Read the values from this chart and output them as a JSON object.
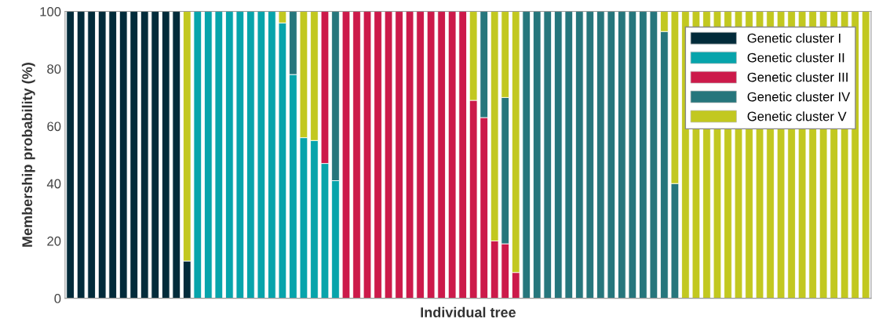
{
  "chart_data": {
    "type": "bar",
    "stacked": true,
    "xlabel": "Individual tree",
    "ylabel": "Membership probability (%)",
    "categories": [
      null,
      null,
      null,
      null,
      null,
      null,
      null,
      null,
      null,
      null,
      null,
      null,
      null,
      null,
      null,
      null,
      null,
      null,
      null,
      null,
      null,
      null,
      null,
      null,
      null,
      null,
      null,
      null,
      null,
      null,
      null,
      null,
      null,
      null,
      null,
      null,
      null,
      null,
      null,
      null,
      null,
      null,
      null,
      null,
      null,
      null,
      null,
      null,
      null,
      null,
      null,
      null,
      null,
      null,
      null,
      null,
      null,
      null,
      null,
      null,
      null,
      null,
      null,
      null,
      null,
      null,
      null,
      null,
      null,
      null,
      null,
      null,
      null,
      null,
      null,
      null
    ],
    "series": [
      {
        "name": "Genetic cluster I",
        "color": "#022b3a",
        "values": [
          100,
          100,
          100,
          100,
          100,
          100,
          100,
          100,
          100,
          100,
          100,
          13,
          null,
          null,
          null,
          null,
          null,
          null,
          null,
          null,
          null,
          null,
          null,
          null,
          null,
          null,
          null,
          null,
          null,
          null,
          null,
          null,
          null,
          null,
          null,
          null,
          null,
          null,
          null,
          null,
          null,
          null,
          null,
          null,
          null,
          null,
          null,
          null,
          null,
          null,
          null,
          null,
          null,
          null,
          null,
          null,
          null,
          null,
          null,
          null,
          null,
          null,
          null,
          null,
          null,
          null,
          null,
          null,
          null,
          null,
          null,
          null,
          null,
          null,
          null,
          null
        ]
      },
      {
        "name": "Genetic cluster II",
        "color": "#07a4ab",
        "values": [
          null,
          null,
          null,
          null,
          null,
          null,
          null,
          null,
          null,
          null,
          null,
          null,
          100,
          100,
          100,
          100,
          100,
          100,
          100,
          100,
          96,
          78,
          56,
          55,
          47,
          41,
          null,
          null,
          null,
          null,
          null,
          null,
          null,
          null,
          null,
          null,
          null,
          null,
          null,
          null,
          null,
          null,
          null,
          null,
          null,
          null,
          null,
          null,
          null,
          null,
          null,
          null,
          null,
          null,
          null,
          null,
          null,
          null,
          null,
          null,
          null,
          null,
          null,
          null,
          null,
          null,
          null,
          null,
          null,
          null,
          null,
          null,
          null,
          null,
          null,
          null
        ]
      },
      {
        "name": "Genetic cluster III",
        "color": "#cc1a4a",
        "values": [
          null,
          null,
          null,
          null,
          null,
          null,
          null,
          null,
          null,
          null,
          null,
          null,
          null,
          null,
          null,
          null,
          null,
          null,
          null,
          null,
          null,
          null,
          null,
          null,
          53,
          null,
          100,
          100,
          100,
          100,
          100,
          100,
          100,
          100,
          100,
          100,
          100,
          100,
          69,
          63,
          20,
          19,
          9,
          null,
          null,
          null,
          null,
          null,
          null,
          null,
          null,
          null,
          null,
          null,
          null,
          null,
          null,
          null,
          null,
          null,
          null,
          null,
          null,
          null,
          null,
          null,
          null,
          null,
          null,
          null,
          null,
          null,
          null,
          null,
          null,
          null
        ]
      },
      {
        "name": "Genetic cluster IV",
        "color": "#26767c",
        "values": [
          null,
          null,
          null,
          null,
          null,
          null,
          null,
          null,
          null,
          null,
          null,
          null,
          null,
          null,
          null,
          null,
          null,
          null,
          null,
          null,
          null,
          22,
          null,
          null,
          null,
          59,
          null,
          null,
          null,
          null,
          null,
          null,
          null,
          null,
          null,
          null,
          null,
          null,
          null,
          37,
          null,
          51,
          null,
          100,
          100,
          100,
          100,
          100,
          100,
          100,
          100,
          100,
          100,
          100,
          100,
          100,
          93,
          40,
          null,
          null,
          null,
          null,
          null,
          null,
          null,
          null,
          null,
          null,
          null,
          null,
          null,
          null,
          null,
          null,
          null,
          null
        ]
      },
      {
        "name": "Genetic cluster V",
        "color": "#c2c820",
        "values": [
          null,
          null,
          null,
          null,
          null,
          null,
          null,
          null,
          null,
          null,
          null,
          87,
          null,
          null,
          null,
          null,
          null,
          null,
          null,
          null,
          4,
          null,
          44,
          45,
          null,
          null,
          null,
          null,
          null,
          null,
          null,
          null,
          null,
          null,
          null,
          null,
          null,
          null,
          31,
          null,
          80,
          30,
          91,
          null,
          null,
          null,
          null,
          null,
          null,
          null,
          null,
          null,
          null,
          null,
          null,
          null,
          7,
          60,
          100,
          100,
          100,
          100,
          100,
          100,
          100,
          100,
          100,
          100,
          100,
          100,
          100,
          100,
          100,
          100,
          100,
          100
        ]
      }
    ],
    "ylim": [
      0,
      100
    ],
    "yticks": [
      0,
      20,
      40,
      60,
      80,
      100
    ],
    "legend": "top right",
    "tick_labels": "y"
  }
}
